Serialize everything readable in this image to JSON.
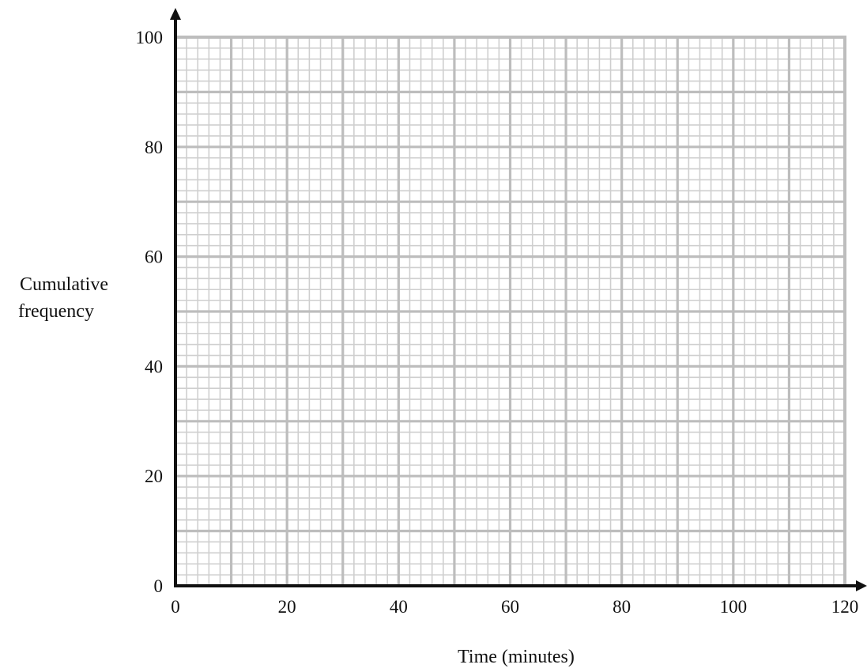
{
  "chart_data": {
    "type": "line",
    "title": "",
    "xlabel": "Time (minutes)",
    "ylabel": [
      "Cumulative",
      "frequency"
    ],
    "xlim": [
      0,
      120
    ],
    "ylim": [
      0,
      100
    ],
    "x_ticks": [
      "0",
      "20",
      "40",
      "60",
      "80",
      "100",
      "120"
    ],
    "y_ticks": [
      "0",
      "20",
      "40",
      "60",
      "80",
      "100"
    ],
    "grid": {
      "visible": true,
      "major_x_step": 10,
      "major_y_step": 10,
      "minor_x_step": 2,
      "minor_y_step": 2
    },
    "series": [],
    "colors": {
      "grid_major": "#bdbdbd",
      "grid_minor": "#cfcfcf",
      "axis": "#111111"
    }
  }
}
